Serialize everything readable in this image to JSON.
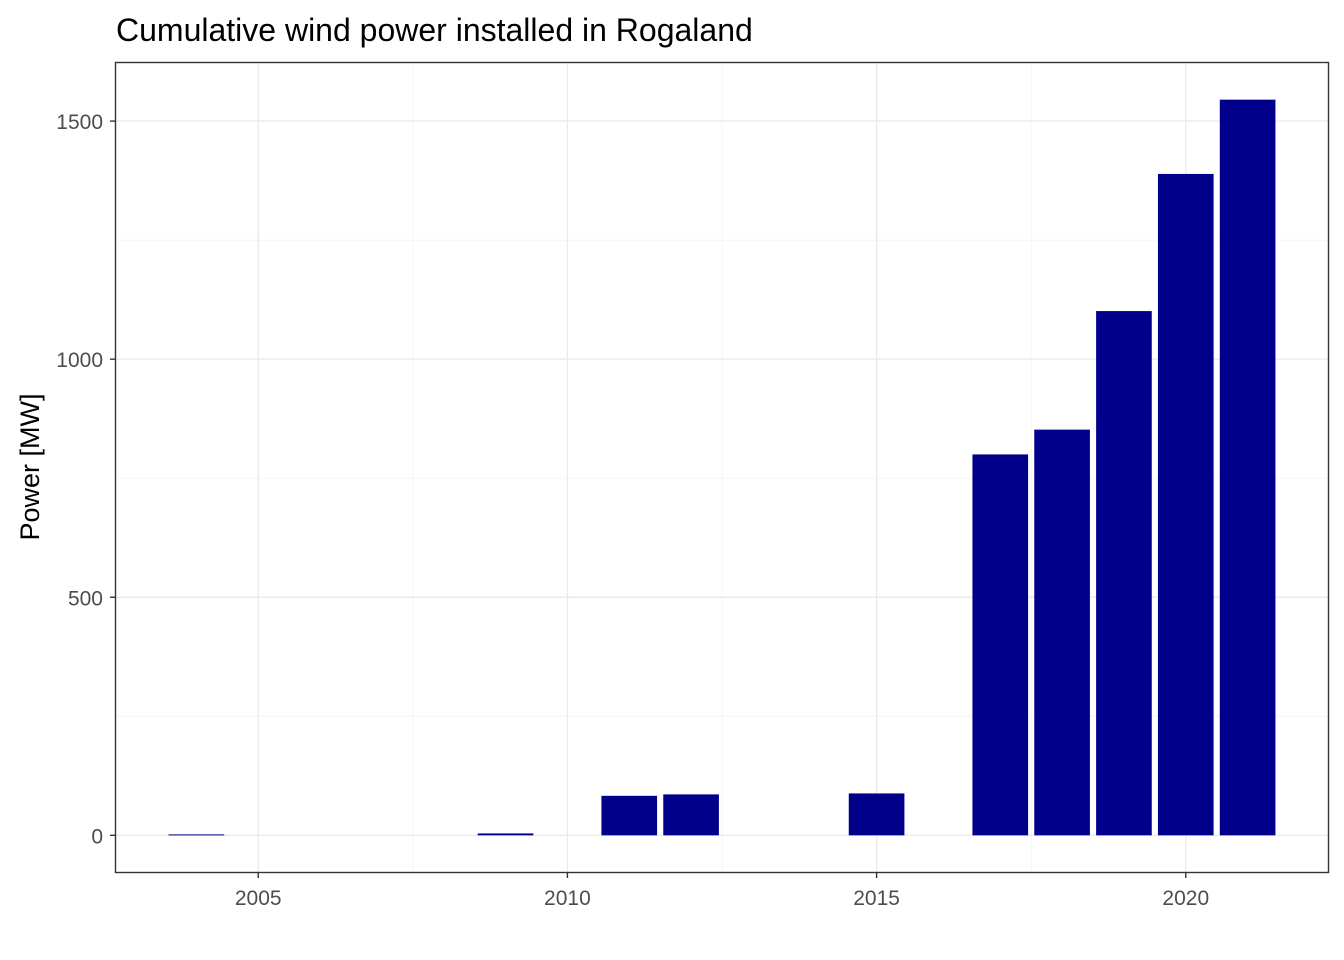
{
  "chart_data": {
    "type": "bar",
    "title": "Cumulative wind power installed in Rogaland",
    "xlabel": "",
    "ylabel": "Power [MW]",
    "x": [
      2004,
      2009,
      2011,
      2012,
      2015,
      2017,
      2018,
      2019,
      2020,
      2021
    ],
    "values": [
      2,
      4,
      83,
      86,
      88,
      800,
      852,
      1101,
      1389,
      1545
    ],
    "xlim": [
      2002.7,
      2022.3
    ],
    "ylim": [
      -77,
      1622
    ],
    "xticks": [
      2005,
      2010,
      2015,
      2020
    ],
    "xtick_labels": [
      "2005",
      "2010",
      "2015",
      "2020"
    ],
    "yticks": [
      0,
      500,
      1000,
      1500
    ],
    "ytick_labels": [
      "0",
      "500",
      "1000",
      "1500"
    ],
    "bar_color": "#00008B",
    "grid": true,
    "legend": "none"
  }
}
